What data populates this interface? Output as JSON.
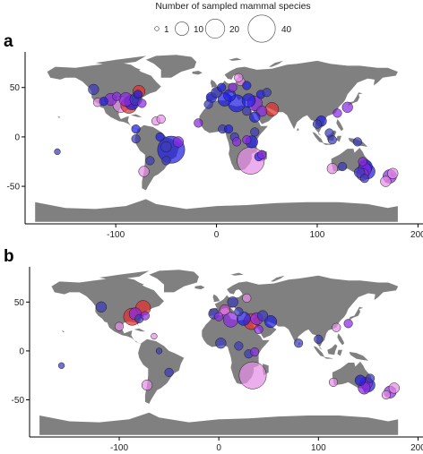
{
  "legend": {
    "title": "Number of sampled mammal species",
    "entries": [
      {
        "value": 1,
        "label": "1"
      },
      {
        "value": 10,
        "label": "10"
      },
      {
        "value": 20,
        "label": "20"
      },
      {
        "value": 40,
        "label": "40"
      }
    ]
  },
  "colors": {
    "land": "#808080",
    "blue": "#1f1fe0",
    "purple": "#8a2be2",
    "magenta": "#c040c0",
    "pink": "#e68fe6",
    "red": "#e23030",
    "navy": "#3b3bb8"
  },
  "chart_data": [
    {
      "type": "scatter",
      "panel": "a",
      "xticks": [
        "-100",
        "0",
        "100",
        "200"
      ],
      "yticks": [
        "50",
        "0",
        "-50"
      ],
      "xlim": [
        -190,
        205
      ],
      "ylim": [
        -88,
        86
      ],
      "points": [
        {
          "lon": -122,
          "lat": 48,
          "size": 6,
          "color": "navy"
        },
        {
          "lon": -118,
          "lat": 35,
          "size": 4,
          "color": "pink"
        },
        {
          "lon": -112,
          "lat": 36,
          "size": 4,
          "color": "blue"
        },
        {
          "lon": -105,
          "lat": 38,
          "size": 8,
          "color": "purple"
        },
        {
          "lon": -99,
          "lat": 41,
          "size": 4,
          "color": "purple"
        },
        {
          "lon": -95,
          "lat": 33,
          "size": 14,
          "color": "pink"
        },
        {
          "lon": -90,
          "lat": 38,
          "size": 10,
          "color": "purple"
        },
        {
          "lon": -87,
          "lat": 32,
          "size": 14,
          "color": "red"
        },
        {
          "lon": -84,
          "lat": 35,
          "size": 12,
          "color": "blue"
        },
        {
          "lon": -80,
          "lat": 38,
          "size": 8,
          "color": "navy"
        },
        {
          "lon": -78,
          "lat": 43,
          "size": 4,
          "color": "blue"
        },
        {
          "lon": -77,
          "lat": 46,
          "size": 8,
          "color": "red"
        },
        {
          "lon": -74,
          "lat": 34,
          "size": 4,
          "color": "purple"
        },
        {
          "lon": -60,
          "lat": 16,
          "size": 4,
          "color": "pink"
        },
        {
          "lon": -55,
          "lat": 18,
          "size": 4,
          "color": "pink"
        },
        {
          "lon": -56,
          "lat": 0,
          "size": 4,
          "color": "blue"
        },
        {
          "lon": -50,
          "lat": -10,
          "size": 6,
          "color": "navy"
        },
        {
          "lon": -45,
          "lat": -13,
          "size": 40,
          "color": "blue"
        },
        {
          "lon": -50,
          "lat": -24,
          "size": 4,
          "color": "navy"
        },
        {
          "lon": -66,
          "lat": -24,
          "size": 4,
          "color": "navy"
        },
        {
          "lon": -72,
          "lat": -35,
          "size": 6,
          "color": "pink"
        },
        {
          "lon": -80,
          "lat": -2,
          "size": 4,
          "color": "navy"
        },
        {
          "lon": -80,
          "lat": 8,
          "size": 4,
          "color": "blue"
        },
        {
          "lon": -38,
          "lat": -5,
          "size": 6,
          "color": "purple"
        },
        {
          "lon": -158,
          "lat": -15,
          "size": 2,
          "color": "navy"
        },
        {
          "lon": -18,
          "lat": 14,
          "size": 4,
          "color": "purple"
        },
        {
          "lon": -5,
          "lat": 40,
          "size": 6,
          "color": "blue"
        },
        {
          "lon": -8,
          "lat": 33,
          "size": 4,
          "color": "navy"
        },
        {
          "lon": 0,
          "lat": 45,
          "size": 6,
          "color": "navy"
        },
        {
          "lon": 5,
          "lat": 50,
          "size": 4,
          "color": "blue"
        },
        {
          "lon": 8,
          "lat": 38,
          "size": 10,
          "color": "blue"
        },
        {
          "lon": 13,
          "lat": 42,
          "size": 8,
          "color": "blue"
        },
        {
          "lon": 16,
          "lat": 50,
          "size": 4,
          "color": "purple"
        },
        {
          "lon": 20,
          "lat": 34,
          "size": 16,
          "color": "blue"
        },
        {
          "lon": 24,
          "lat": 56,
          "size": 4,
          "color": "pink"
        },
        {
          "lon": 22,
          "lat": 60,
          "size": 4,
          "color": "pink"
        },
        {
          "lon": 30,
          "lat": 52,
          "size": 4,
          "color": "blue"
        },
        {
          "lon": 32,
          "lat": 37,
          "size": 10,
          "color": "blue"
        },
        {
          "lon": 38,
          "lat": 34,
          "size": 12,
          "color": "purple"
        },
        {
          "lon": 44,
          "lat": 43,
          "size": 4,
          "color": "blue"
        },
        {
          "lon": 50,
          "lat": 45,
          "size": 4,
          "color": "navy"
        },
        {
          "lon": 55,
          "lat": 28,
          "size": 10,
          "color": "red"
        },
        {
          "lon": 45,
          "lat": 26,
          "size": 6,
          "color": "purple"
        },
        {
          "lon": 30,
          "lat": 26,
          "size": 4,
          "color": "navy"
        },
        {
          "lon": 38,
          "lat": 20,
          "size": 6,
          "color": "blue"
        },
        {
          "lon": 6,
          "lat": 8,
          "size": 4,
          "color": "navy"
        },
        {
          "lon": 12,
          "lat": 8,
          "size": 4,
          "color": "blue"
        },
        {
          "lon": 18,
          "lat": 0,
          "size": 4,
          "color": "navy"
        },
        {
          "lon": 20,
          "lat": -5,
          "size": 4,
          "color": "purple"
        },
        {
          "lon": 30,
          "lat": -3,
          "size": 4,
          "color": "purple"
        },
        {
          "lon": 35,
          "lat": -5,
          "size": 8,
          "color": "blue"
        },
        {
          "lon": 38,
          "lat": 5,
          "size": 4,
          "color": "navy"
        },
        {
          "lon": 34,
          "lat": -24,
          "size": 40,
          "color": "pink"
        },
        {
          "lon": 42,
          "lat": -20,
          "size": 4,
          "color": "blue"
        },
        {
          "lon": 45,
          "lat": -18,
          "size": 4,
          "color": "purple"
        },
        {
          "lon": 100,
          "lat": 13,
          "size": 4,
          "color": "navy"
        },
        {
          "lon": 104,
          "lat": 16,
          "size": 6,
          "color": "blue"
        },
        {
          "lon": 112,
          "lat": 4,
          "size": 4,
          "color": "navy"
        },
        {
          "lon": 120,
          "lat": 24,
          "size": 4,
          "color": "purple"
        },
        {
          "lon": 115,
          "lat": -3,
          "size": 4,
          "color": "navy"
        },
        {
          "lon": 130,
          "lat": 30,
          "size": 6,
          "color": "purple"
        },
        {
          "lon": 140,
          "lat": -5,
          "size": 4,
          "color": "navy"
        },
        {
          "lon": 115,
          "lat": -32,
          "size": 6,
          "color": "pink"
        },
        {
          "lon": 125,
          "lat": -30,
          "size": 4,
          "color": "navy"
        },
        {
          "lon": 145,
          "lat": -25,
          "size": 4,
          "color": "purple"
        },
        {
          "lon": 148,
          "lat": -30,
          "size": 10,
          "color": "blue"
        },
        {
          "lon": 147,
          "lat": -33,
          "size": 10,
          "color": "purple"
        },
        {
          "lon": 150,
          "lat": -35,
          "size": 12,
          "color": "blue"
        },
        {
          "lon": 145,
          "lat": -38,
          "size": 8,
          "color": "purple"
        },
        {
          "lon": 142,
          "lat": -36,
          "size": 6,
          "color": "navy"
        },
        {
          "lon": 147,
          "lat": -42,
          "size": 4,
          "color": "navy"
        },
        {
          "lon": 172,
          "lat": -40,
          "size": 10,
          "color": "purple"
        },
        {
          "lon": 175,
          "lat": -37,
          "size": 6,
          "color": "pink"
        },
        {
          "lon": 168,
          "lat": -45,
          "size": 6,
          "color": "pink"
        }
      ]
    },
    {
      "type": "scatter",
      "panel": "b",
      "xticks": [
        "-100",
        "0",
        "100",
        "200"
      ],
      "yticks": [
        "50",
        "0",
        "-50"
      ],
      "xlim": [
        -190,
        205
      ],
      "ylim": [
        -88,
        86
      ],
      "points": [
        {
          "lon": -118,
          "lat": 45,
          "size": 6,
          "color": "navy"
        },
        {
          "lon": -100,
          "lat": 25,
          "size": 4,
          "color": "pink"
        },
        {
          "lon": -87,
          "lat": 35,
          "size": 16,
          "color": "red"
        },
        {
          "lon": -84,
          "lat": 38,
          "size": 8,
          "color": "purple"
        },
        {
          "lon": -80,
          "lat": 33,
          "size": 4,
          "color": "navy"
        },
        {
          "lon": -76,
          "lat": 44,
          "size": 12,
          "color": "red"
        },
        {
          "lon": -74,
          "lat": 36,
          "size": 4,
          "color": "purple"
        },
        {
          "lon": -65,
          "lat": 15,
          "size": 2,
          "color": "pink"
        },
        {
          "lon": -60,
          "lat": 0,
          "size": 2,
          "color": "navy"
        },
        {
          "lon": -50,
          "lat": -22,
          "size": 4,
          "color": "navy"
        },
        {
          "lon": -72,
          "lat": -35,
          "size": 6,
          "color": "pink"
        },
        {
          "lon": -158,
          "lat": -15,
          "size": 2,
          "color": "navy"
        },
        {
          "lon": -5,
          "lat": 38,
          "size": 6,
          "color": "navy"
        },
        {
          "lon": 0,
          "lat": 35,
          "size": 4,
          "color": "purple"
        },
        {
          "lon": 6,
          "lat": 42,
          "size": 6,
          "color": "magenta"
        },
        {
          "lon": 12,
          "lat": 32,
          "size": 12,
          "color": "purple"
        },
        {
          "lon": 14,
          "lat": 50,
          "size": 6,
          "color": "navy"
        },
        {
          "lon": 20,
          "lat": 40,
          "size": 4,
          "color": "navy"
        },
        {
          "lon": 25,
          "lat": 33,
          "size": 10,
          "color": "blue"
        },
        {
          "lon": 28,
          "lat": 54,
          "size": 4,
          "color": "pink"
        },
        {
          "lon": 33,
          "lat": 30,
          "size": 14,
          "color": "red"
        },
        {
          "lon": 38,
          "lat": 33,
          "size": 8,
          "color": "purple"
        },
        {
          "lon": 44,
          "lat": 36,
          "size": 6,
          "color": "navy"
        },
        {
          "lon": 52,
          "lat": 30,
          "size": 8,
          "color": "blue"
        },
        {
          "lon": 40,
          "lat": 22,
          "size": 4,
          "color": "purple"
        },
        {
          "lon": 2,
          "lat": 8,
          "size": 6,
          "color": "navy"
        },
        {
          "lon": 20,
          "lat": 5,
          "size": 4,
          "color": "navy"
        },
        {
          "lon": 30,
          "lat": -3,
          "size": 4,
          "color": "navy"
        },
        {
          "lon": 36,
          "lat": -1,
          "size": 4,
          "color": "purple"
        },
        {
          "lon": 34,
          "lat": -25,
          "size": 40,
          "color": "pink"
        },
        {
          "lon": 80,
          "lat": 8,
          "size": 4,
          "color": "navy"
        },
        {
          "lon": 100,
          "lat": 12,
          "size": 4,
          "color": "navy"
        },
        {
          "lon": 118,
          "lat": 24,
          "size": 4,
          "color": "pink"
        },
        {
          "lon": 130,
          "lat": 28,
          "size": 4,
          "color": "purple"
        },
        {
          "lon": 115,
          "lat": -32,
          "size": 4,
          "color": "pink"
        },
        {
          "lon": 142,
          "lat": -30,
          "size": 6,
          "color": "blue"
        },
        {
          "lon": 148,
          "lat": -33,
          "size": 8,
          "color": "purple"
        },
        {
          "lon": 150,
          "lat": -35,
          "size": 10,
          "color": "blue"
        },
        {
          "lon": 146,
          "lat": -38,
          "size": 8,
          "color": "purple"
        },
        {
          "lon": 152,
          "lat": -28,
          "size": 4,
          "color": "navy"
        },
        {
          "lon": 172,
          "lat": -42,
          "size": 8,
          "color": "purple"
        },
        {
          "lon": 176,
          "lat": -38,
          "size": 6,
          "color": "pink"
        },
        {
          "lon": 168,
          "lat": -45,
          "size": 4,
          "color": "pink"
        }
      ]
    }
  ]
}
